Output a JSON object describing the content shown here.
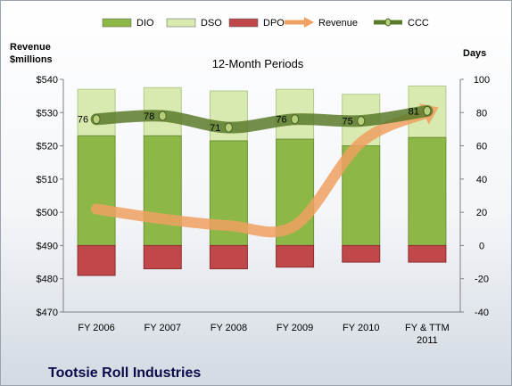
{
  "chart_data": {
    "type": "bar",
    "title": "12-Month Periods",
    "company": "Tootsie Roll Industries",
    "left_axis_title": [
      "Revenue",
      "$millions"
    ],
    "right_axis_title": "Days",
    "categories": [
      [
        "FY 2006"
      ],
      [
        "FY 2007"
      ],
      [
        "FY 2008"
      ],
      [
        "FY 2009"
      ],
      [
        "FY 2010"
      ],
      [
        "FY & TTM",
        "2011"
      ]
    ],
    "left_axis": {
      "min": 470,
      "max": 540,
      "step": 10,
      "ticks": [
        "$470",
        "$480",
        "$490",
        "$500",
        "$510",
        "$520",
        "$530",
        "$540"
      ]
    },
    "right_axis": {
      "min": -40,
      "max": 100,
      "step": 20,
      "ticks": [
        "-40",
        "-20",
        "0",
        "20",
        "40",
        "60",
        "80",
        "100"
      ]
    },
    "legend": [
      "DIO",
      "DSO",
      "DPO",
      "Revenue",
      "CCC"
    ],
    "series": [
      {
        "name": "DIO",
        "axis": "right",
        "kind": "stacked-bar",
        "color": "#8db848",
        "values": [
          66,
          66,
          63,
          64,
          60,
          65
        ]
      },
      {
        "name": "DSO",
        "axis": "right",
        "kind": "stacked-bar",
        "color": "#d8eab0",
        "values": [
          28,
          29,
          30,
          30,
          31,
          31
        ]
      },
      {
        "name": "DPO",
        "axis": "right",
        "kind": "negative-bar",
        "color": "#c0484a",
        "values": [
          -18,
          -14,
          -14,
          -13,
          -10,
          -10
        ]
      },
      {
        "name": "Revenue",
        "axis": "left",
        "kind": "line",
        "color": "#f0a060",
        "values": [
          501,
          498,
          496,
          496,
          521,
          530
        ]
      },
      {
        "name": "CCC",
        "axis": "right",
        "kind": "line",
        "color": "#5a7a2a",
        "values": [
          76,
          78,
          71,
          76,
          75,
          81
        ],
        "labels": [
          "76",
          "78",
          "71",
          "76",
          "75",
          "81"
        ]
      }
    ],
    "grid": false,
    "legend_position": "top"
  }
}
